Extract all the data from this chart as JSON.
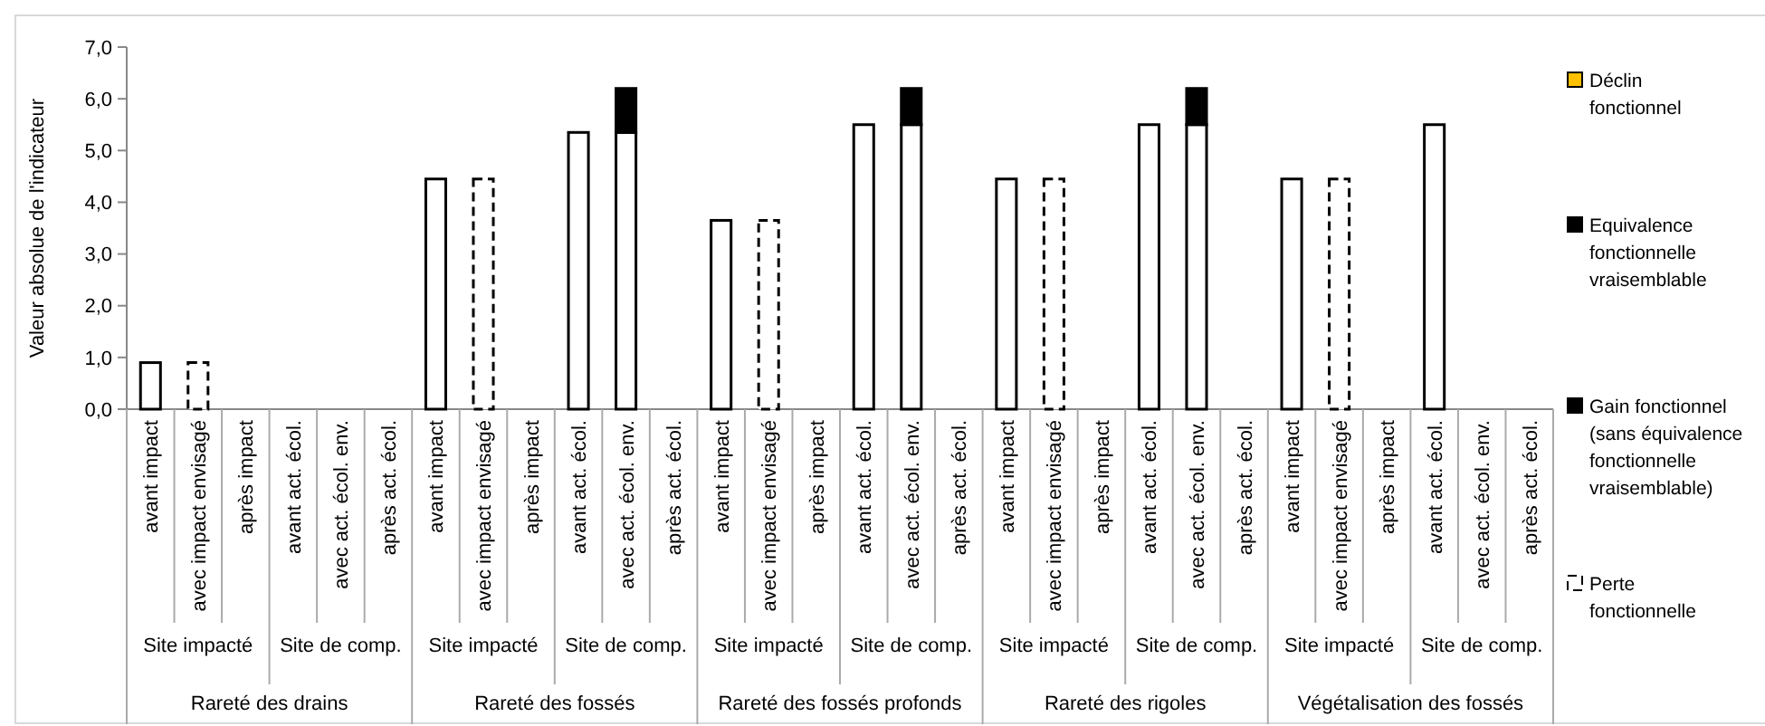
{
  "chart_data": {
    "type": "bar",
    "stacked": true,
    "ylabel": "Valeur absolue de l'indicateur",
    "categories": [
      "avant impact",
      "avec impact envisagé",
      "après impact",
      "avant act. écol.",
      "avec act. écol. env.",
      "après act. écol.",
      "avant impact",
      "avec impact envisagé",
      "après impact",
      "avant act. écol.",
      "avec act. écol. env.",
      "après act. écol.",
      "avant impact",
      "avec impact envisagé",
      "après impact",
      "avant act. écol.",
      "avec act. écol. env.",
      "après act. écol.",
      "avant impact",
      "avec impact envisagé",
      "après impact",
      "avant act. écol.",
      "avec act. écol. env.",
      "après act. écol.",
      "avant impact",
      "avec impact envisagé",
      "après impact",
      "avant act. écol.",
      "avec act. écol. env.",
      "après act. écol."
    ],
    "series": [
      {
        "color": "#ffffff",
        "values": [
          0.9,
          null,
          null,
          null,
          null,
          null,
          4.45,
          null,
          null,
          5.35,
          5.35,
          null,
          3.65,
          null,
          null,
          5.5,
          5.5,
          null,
          4.45,
          null,
          null,
          5.5,
          5.5,
          null,
          4.45,
          null,
          null,
          5.5,
          null,
          null
        ]
      },
      {
        "name": "Déclin fonctionnel",
        "color": "#ffc000",
        "values": [
          null,
          null,
          null,
          null,
          null,
          null,
          null,
          null,
          null,
          null,
          null,
          null,
          null,
          null,
          null,
          null,
          null,
          null,
          null,
          null,
          null,
          null,
          null,
          null,
          null,
          null,
          null,
          null,
          null,
          null
        ]
      },
      {
        "name": "Equivalence fonctionnelle vraisemblable",
        "color": "#000000",
        "values": [
          null,
          null,
          null,
          null,
          null,
          null,
          null,
          null,
          null,
          null,
          null,
          null,
          null,
          null,
          null,
          null,
          null,
          null,
          null,
          null,
          null,
          null,
          null,
          null,
          null,
          null,
          null,
          null,
          null,
          null
        ]
      },
      {
        "name": "Gain fonctionnel (sans équivalence fonctionnelle vraisemblable)",
        "color": "#000000",
        "values": [
          null,
          null,
          null,
          null,
          null,
          null,
          null,
          null,
          null,
          null,
          0.85,
          null,
          null,
          null,
          null,
          null,
          0.7,
          null,
          null,
          null,
          null,
          null,
          0.7,
          null,
          null,
          null,
          null,
          null,
          null,
          null
        ]
      },
      {
        "name": "Perte fonctionnelle",
        "color": "#ffffff",
        "line_style": "dashed",
        "values": [
          null,
          0.9,
          null,
          null,
          null,
          null,
          null,
          4.45,
          null,
          null,
          null,
          null,
          null,
          3.65,
          null,
          null,
          null,
          null,
          null,
          4.45,
          null,
          null,
          null,
          null,
          null,
          4.45,
          null,
          null,
          null,
          null
        ]
      }
    ],
    "ylim": [
      0,
      7
    ],
    "yticks": [
      {
        "value": 0,
        "label": "0,0"
      },
      {
        "value": 1,
        "label": "1,0"
      },
      {
        "value": 2,
        "label": "2,0"
      },
      {
        "value": 3,
        "label": "3,0"
      },
      {
        "value": 4,
        "label": "4,0"
      },
      {
        "value": 5,
        "label": "5,0"
      },
      {
        "value": 6,
        "label": "6,0"
      },
      {
        "value": 7,
        "label": "7,0"
      }
    ],
    "legend": "right",
    "annotations": [
      "Site impacté",
      "Site de comp.",
      "Site impacté",
      "Site de comp.",
      "Site impacté",
      "Site de comp.",
      "Site impacté",
      "Site de comp.",
      "Site impacté",
      "Site de comp.",
      "Rareté des drains",
      "Rareté des fossés",
      "Rareté des fossés profonds",
      "Rareté des rigoles",
      "Végétalisation des fossés"
    ]
  }
}
